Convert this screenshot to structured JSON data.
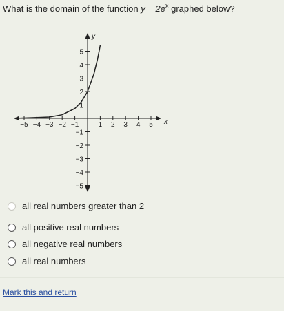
{
  "question": {
    "before": "What is the domain of the function",
    "equation_base": "y = 2e",
    "equation_exponent": "x",
    "after": "graphed below?"
  },
  "graph": {
    "x_axis_label": "x",
    "y_axis_label": "y",
    "x_tick_labels": [
      "−5",
      "−4",
      "−3",
      "−2",
      "−1",
      "1",
      "2",
      "3",
      "4",
      "5"
    ],
    "y_tick_labels": [
      "5",
      "4",
      "3",
      "2",
      "1",
      "−1",
      "−2",
      "−3",
      "−4",
      "−5"
    ]
  },
  "options": [
    "all real numbers greater than 2",
    "all positive real numbers",
    "all negative real numbers",
    "all real numbers"
  ],
  "link": "Mark this and return"
}
